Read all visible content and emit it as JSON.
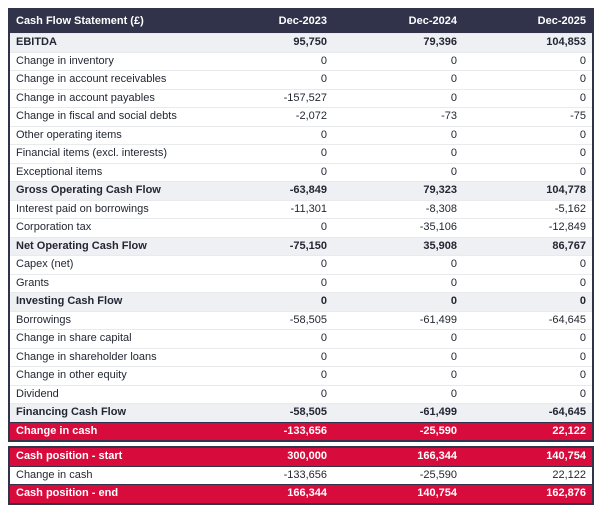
{
  "colors": {
    "header_bg": "#30334a",
    "header_text": "#ffffff",
    "section_row_bg": "#eef0f4",
    "body_text": "#232733",
    "accent_red": "#d80c3c",
    "highlight_text": "#ffffff",
    "row_divider": "#e9eaee",
    "outer_border": "#30334a"
  },
  "chart_data": {
    "type": "table",
    "title": "Cash Flow Statement (£)",
    "columns": [
      "Dec-2023",
      "Dec-2024",
      "Dec-2025"
    ],
    "rows": [
      {
        "label": "EBITDA",
        "values": [
          "95,750",
          "79,396",
          "104,853"
        ],
        "type": "section"
      },
      {
        "label": "Change in inventory",
        "values": [
          "0",
          "0",
          "0"
        ],
        "type": "normal"
      },
      {
        "label": "Change in account receivables",
        "values": [
          "0",
          "0",
          "0"
        ],
        "type": "normal"
      },
      {
        "label": "Change in account payables",
        "values": [
          "-157,527",
          "0",
          "0"
        ],
        "type": "normal"
      },
      {
        "label": "Change in fiscal and social debts",
        "values": [
          "-2,072",
          "-73",
          "-75"
        ],
        "type": "normal"
      },
      {
        "label": "Other operating items",
        "values": [
          "0",
          "0",
          "0"
        ],
        "type": "normal"
      },
      {
        "label": "Financial items (excl. interests)",
        "values": [
          "0",
          "0",
          "0"
        ],
        "type": "normal"
      },
      {
        "label": "Exceptional items",
        "values": [
          "0",
          "0",
          "0"
        ],
        "type": "normal"
      },
      {
        "label": "Gross Operating Cash Flow",
        "values": [
          "-63,849",
          "79,323",
          "104,778"
        ],
        "type": "section"
      },
      {
        "label": "Interest paid on borrowings",
        "values": [
          "-11,301",
          "-8,308",
          "-5,162"
        ],
        "type": "normal"
      },
      {
        "label": "Corporation tax",
        "values": [
          "0",
          "-35,106",
          "-12,849"
        ],
        "type": "normal"
      },
      {
        "label": "Net Operating Cash Flow",
        "values": [
          "-75,150",
          "35,908",
          "86,767"
        ],
        "type": "section"
      },
      {
        "label": "Capex (net)",
        "values": [
          "0",
          "0",
          "0"
        ],
        "type": "normal"
      },
      {
        "label": "Grants",
        "values": [
          "0",
          "0",
          "0"
        ],
        "type": "normal"
      },
      {
        "label": "Investing Cash Flow",
        "values": [
          "0",
          "0",
          "0"
        ],
        "type": "section"
      },
      {
        "label": "Borrowings",
        "values": [
          "-58,505",
          "-61,499",
          "-64,645"
        ],
        "type": "normal"
      },
      {
        "label": "Change in share capital",
        "values": [
          "0",
          "0",
          "0"
        ],
        "type": "normal"
      },
      {
        "label": "Change in shareholder loans",
        "values": [
          "0",
          "0",
          "0"
        ],
        "type": "normal"
      },
      {
        "label": "Change in other equity",
        "values": [
          "0",
          "0",
          "0"
        ],
        "type": "normal"
      },
      {
        "label": "Dividend",
        "values": [
          "0",
          "0",
          "0"
        ],
        "type": "normal"
      },
      {
        "label": "Financing Cash Flow",
        "values": [
          "-58,505",
          "-61,499",
          "-64,645"
        ],
        "type": "section"
      },
      {
        "label": "Change in cash",
        "values": [
          "-133,656",
          "-25,590",
          "22,122"
        ],
        "type": "highlight"
      }
    ],
    "summary_rows": [
      {
        "label": "Cash position - start",
        "values": [
          "300,000",
          "166,344",
          "140,754"
        ],
        "type": "highlight"
      },
      {
        "label": "Change in cash",
        "values": [
          "-133,656",
          "-25,590",
          "22,122"
        ],
        "type": "normal"
      },
      {
        "label": "Cash position - end",
        "values": [
          "166,344",
          "140,754",
          "162,876"
        ],
        "type": "highlight"
      }
    ]
  }
}
